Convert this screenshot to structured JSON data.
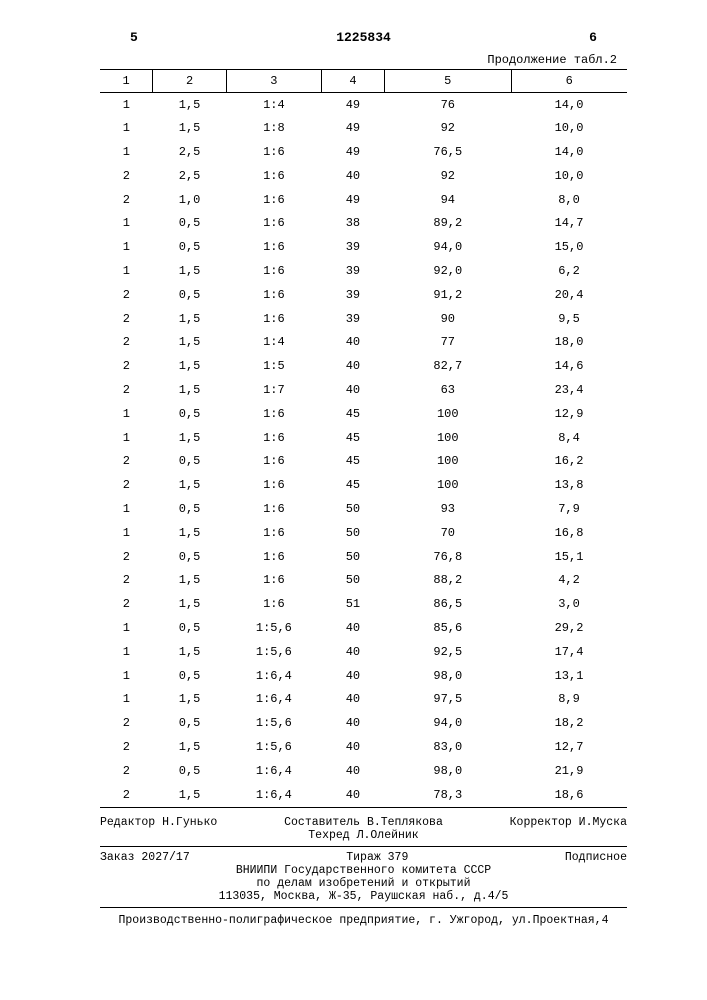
{
  "topleft": "5",
  "docnum": "1225834",
  "topright": "6",
  "cont_label": "Продолжение табл.2",
  "headers": [
    "1",
    "2",
    "3",
    "4",
    "5",
    "6"
  ],
  "rows": [
    [
      "1",
      "1,5",
      "1:4",
      "49",
      "76",
      "14,0"
    ],
    [
      "1",
      "1,5",
      "1:8",
      "49",
      "92",
      "10,0"
    ],
    [
      "1",
      "2,5",
      "1:6",
      "49",
      "76,5",
      "14,0"
    ],
    [
      "2",
      "2,5",
      "1:6",
      "40",
      "92",
      "10,0"
    ],
    [
      "2",
      "1,0",
      "1:6",
      "49",
      "94",
      "8,0"
    ],
    [
      "1",
      "0,5",
      "1:6",
      "38",
      "89,2",
      "14,7"
    ],
    [
      "1",
      "0,5",
      "1:6",
      "39",
      "94,0",
      "15,0"
    ],
    [
      "1",
      "1,5",
      "1:6",
      "39",
      "92,0",
      "6,2"
    ],
    [
      "2",
      "0,5",
      "1:6",
      "39",
      "91,2",
      "20,4"
    ],
    [
      "2",
      "1,5",
      "1:6",
      "39",
      "90",
      "9,5"
    ],
    [
      "2",
      "1,5",
      "1:4",
      "40",
      "77",
      "18,0"
    ],
    [
      "2",
      "1,5",
      "1:5",
      "40",
      "82,7",
      "14,6"
    ],
    [
      "2",
      "1,5",
      "1:7",
      "40",
      "63",
      "23,4"
    ],
    [
      "1",
      "0,5",
      "1:6",
      "45",
      "100",
      "12,9"
    ],
    [
      "1",
      "1,5",
      "1:6",
      "45",
      "100",
      "8,4"
    ],
    [
      "2",
      "0,5",
      "1:6",
      "45",
      "100",
      "16,2"
    ],
    [
      "2",
      "1,5",
      "1:6",
      "45",
      "100",
      "13,8"
    ],
    [
      "1",
      "0,5",
      "1:6",
      "50",
      "93",
      "7,9"
    ],
    [
      "1",
      "1,5",
      "1:6",
      "50",
      "70",
      "16,8"
    ],
    [
      "2",
      "0,5",
      "1:6",
      "50",
      "76,8",
      "15,1"
    ],
    [
      "2",
      "1,5",
      "1:6",
      "50",
      "88,2",
      "4,2"
    ],
    [
      "2",
      "1,5",
      "1:6",
      "51",
      "86,5",
      "3,0"
    ],
    [
      "1",
      "0,5",
      "1:5,6",
      "40",
      "85,6",
      "29,2"
    ],
    [
      "1",
      "1,5",
      "1:5,6",
      "40",
      "92,5",
      "17,4"
    ],
    [
      "1",
      "0,5",
      "1:6,4",
      "40",
      "98,0",
      "13,1"
    ],
    [
      "1",
      "1,5",
      "1:6,4",
      "40",
      "97,5",
      "8,9"
    ],
    [
      "2",
      "0,5",
      "1:5,6",
      "40",
      "94,0",
      "18,2"
    ],
    [
      "2",
      "1,5",
      "1:5,6",
      "40",
      "83,0",
      "12,7"
    ],
    [
      "2",
      "0,5",
      "1:6,4",
      "40",
      "98,0",
      "21,9"
    ],
    [
      "2",
      "1,5",
      "1:6,4",
      "40",
      "78,3",
      "18,6"
    ]
  ],
  "credits": {
    "editor": "Редактор Н.Гунько",
    "compiler": "Составитель В.Теплякова",
    "tech": "Техред Л.Олейник",
    "corrector": "Корректор И.Муска"
  },
  "imprint": {
    "order": "Заказ 2027/17",
    "tirazh": "Тираж 379",
    "sub": "Подписное",
    "line1": "ВНИИПИ Государственного комитета СССР",
    "line2": "по делам изобретений и открытий",
    "line3": "113035, Москва, Ж-35, Раушская наб., д.4/5"
  },
  "bottom": "Производственно-полиграфическое предприятие, г. Ужгород, ул.Проектная,4"
}
